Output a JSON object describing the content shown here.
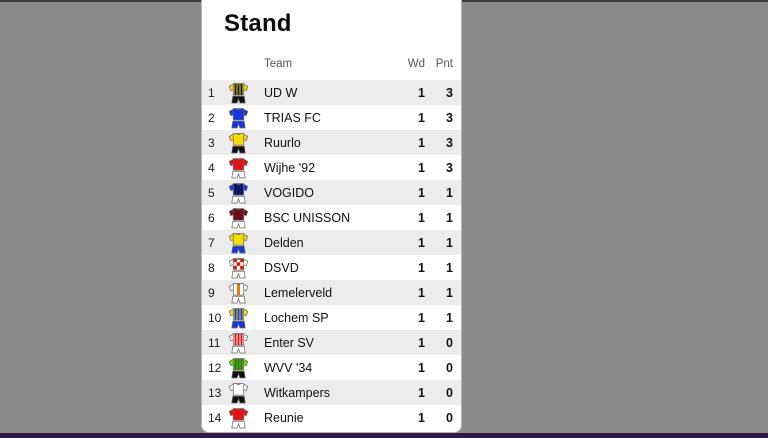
{
  "panel": {
    "title": "Stand"
  },
  "table": {
    "headers": {
      "team": "Team",
      "wd": "Wd",
      "pnt": "Pnt"
    },
    "rows": [
      {
        "rank": "1",
        "team": "UD W",
        "wd": "1",
        "pnt": "3",
        "jersey": {
          "base": "#f6df00",
          "pattern": "vstripes",
          "stripe": "#111111",
          "shorts": "#111111"
        }
      },
      {
        "rank": "2",
        "team": "TRIAS FC",
        "wd": "1",
        "pnt": "3",
        "jersey": {
          "base": "#1637dd",
          "pattern": "solid",
          "shorts": "#1637dd"
        }
      },
      {
        "rank": "3",
        "team": "Ruurlo",
        "wd": "1",
        "pnt": "3",
        "jersey": {
          "base": "#f6df00",
          "pattern": "solid",
          "shorts": "#111111"
        }
      },
      {
        "rank": "4",
        "team": "Wijhe '92",
        "wd": "1",
        "pnt": "3",
        "jersey": {
          "base": "#e81010",
          "pattern": "solid",
          "shorts": "#ffffff"
        }
      },
      {
        "rank": "5",
        "team": "VOGIDO",
        "wd": "1",
        "pnt": "1",
        "jersey": {
          "base": "#1637dd",
          "pattern": "vstripes",
          "stripe": "#0a0a2a",
          "shorts": "#ffffff"
        }
      },
      {
        "rank": "6",
        "team": "BSC UNISSON",
        "wd": "1",
        "pnt": "1",
        "jersey": {
          "base": "#6e0d15",
          "pattern": "solid",
          "shorts": "#ffffff"
        }
      },
      {
        "rank": "7",
        "team": "Delden",
        "wd": "1",
        "pnt": "1",
        "jersey": {
          "base": "#f6df00",
          "pattern": "solid",
          "shorts": "#1637dd"
        }
      },
      {
        "rank": "8",
        "team": "DSVD",
        "wd": "1",
        "pnt": "1",
        "jersey": {
          "base": "#ffffff",
          "pattern": "blocks",
          "stripe": "#e81010",
          "shorts": "#ffffff"
        }
      },
      {
        "rank": "9",
        "team": "Lemelerveld",
        "wd": "1",
        "pnt": "1",
        "jersey": {
          "base": "#ffffff",
          "pattern": "center",
          "stripe": "#f07800",
          "shorts": "#ffffff"
        }
      },
      {
        "rank": "10",
        "team": "Lochem SP",
        "wd": "1",
        "pnt": "1",
        "jersey": {
          "base": "#f6df00",
          "pattern": "vstripes",
          "stripe": "#1637dd",
          "shorts": "#1637dd"
        }
      },
      {
        "rank": "11",
        "team": "Enter SV",
        "wd": "1",
        "pnt": "0",
        "jersey": {
          "base": "#ffffff",
          "pattern": "vstripes",
          "stripe": "#e81010",
          "shorts": "#ffffff"
        }
      },
      {
        "rank": "12",
        "team": "WVV '34",
        "wd": "1",
        "pnt": "0",
        "jersey": {
          "base": "#6fdc0c",
          "pattern": "vstripes",
          "stripe": "#1c6b00",
          "shorts": "#111111"
        }
      },
      {
        "rank": "13",
        "team": "Witkampers",
        "wd": "1",
        "pnt": "0",
        "jersey": {
          "base": "#ffffff",
          "pattern": "solid",
          "shorts": "#111111"
        }
      },
      {
        "rank": "14",
        "team": "Reunie",
        "wd": "1",
        "pnt": "0",
        "jersey": {
          "base": "#e81010",
          "pattern": "solid",
          "shorts": "#ffffff"
        }
      }
    ]
  },
  "colors": {
    "background": "#8b8b8b",
    "top_line": "#3d3d3d",
    "bottom_bar": "#2e1a4d",
    "panel_border": "#b5b5b5",
    "alt_row": "#ececec"
  }
}
